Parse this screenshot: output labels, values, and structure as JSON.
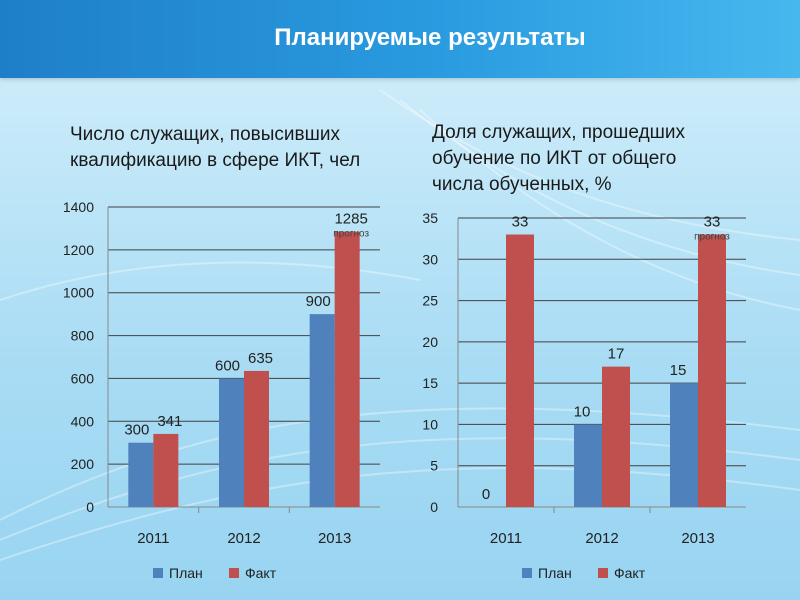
{
  "header": {
    "title": "Планируемые результаты"
  },
  "colors": {
    "plan": "#4f81bd",
    "fact": "#c0504d",
    "header": "#2a9be0",
    "grid": "#404040"
  },
  "chart_data": [
    {
      "type": "bar",
      "title": "Число служащих, повысивших\nквалификацию в сфере ИКТ, чел",
      "categories": [
        "2011",
        "2012",
        "2013"
      ],
      "series": [
        {
          "name": "План",
          "values": [
            300,
            600,
            900
          ]
        },
        {
          "name": "Факт",
          "values": [
            341,
            635,
            1285
          ]
        }
      ],
      "ylim": [
        0,
        1400
      ],
      "yticks": [
        0,
        200,
        400,
        600,
        800,
        1000,
        1200,
        1400
      ],
      "annotation": {
        "category": "2013",
        "series": "Факт",
        "text": "прогноз"
      },
      "grid": true,
      "legend": "bottom"
    },
    {
      "type": "bar",
      "title": "Доля служащих, прошедших\nобучение по ИКТ от общего\nчисла обученных, %",
      "categories": [
        "2011",
        "2012",
        "2013"
      ],
      "series": [
        {
          "name": "План",
          "values": [
            0,
            10,
            15
          ]
        },
        {
          "name": "Факт",
          "values": [
            33,
            17,
            33
          ]
        }
      ],
      "ylim": [
        0,
        35
      ],
      "yticks": [
        0,
        5,
        10,
        15,
        20,
        25,
        30,
        35
      ],
      "annotation": {
        "category": "2013",
        "series": "Факт",
        "text": "прогноз"
      },
      "grid": true,
      "legend": "bottom"
    }
  ]
}
